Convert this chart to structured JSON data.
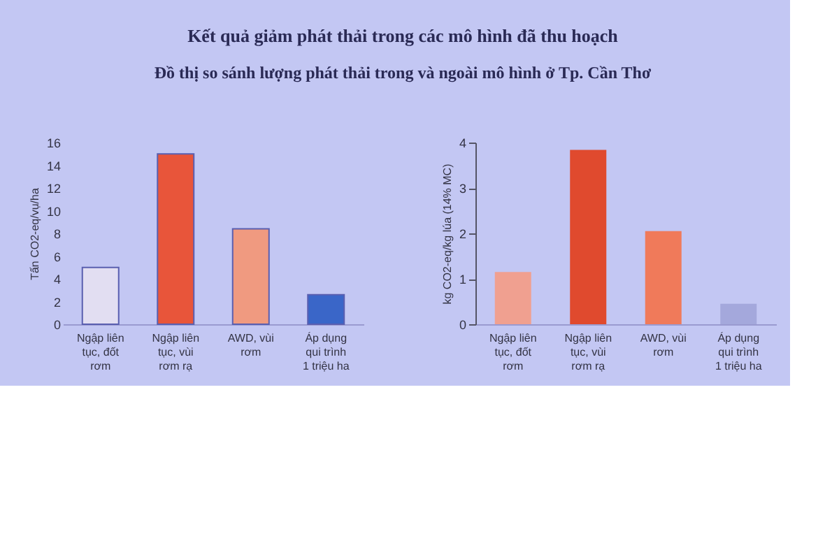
{
  "chart_data": [
    {
      "type": "bar",
      "title": "Kết quả giảm phát thải trong các mô hình đã thu hoạch",
      "subtitle": "Đồ thị so sánh lượng phát thải trong và ngoài mô hình ở Tp. Cần Thơ",
      "ylabel": "Tấn CO2-eq/vụ/ha",
      "categories": [
        "Ngập liên tục, đốt rơm",
        "Ngập liên tục, vùi rơm rạ",
        "AWD, vùi rơm",
        "Áp dụng qui trình 1 triệu ha"
      ],
      "values": [
        5.0,
        15.0,
        8.4,
        2.6
      ],
      "colors": [
        "#e2def2",
        "#e8553a",
        "#f09a80",
        "#3a66c8"
      ],
      "ylim": [
        0,
        16
      ],
      "yticks": [
        0,
        2,
        4,
        6,
        8,
        10,
        12,
        14,
        16
      ],
      "grid": false
    },
    {
      "type": "bar",
      "ylabel": "kg CO2-eq/kg lúa (14% MC)",
      "categories": [
        "Ngập liên tục, đốt rơm",
        "Ngập liên tục, vùi rơm rạ",
        "AWD, vùi rơm",
        "Áp dụng qui trình 1 triệu ha"
      ],
      "values": [
        1.15,
        3.84,
        2.05,
        0.45
      ],
      "colors": [
        "#f0a090",
        "#e04a2e",
        "#f07a5a",
        "#a4a8dc"
      ],
      "ylim": [
        0,
        4
      ],
      "yticks": [
        0,
        1,
        2,
        3,
        4
      ],
      "grid": false
    }
  ]
}
